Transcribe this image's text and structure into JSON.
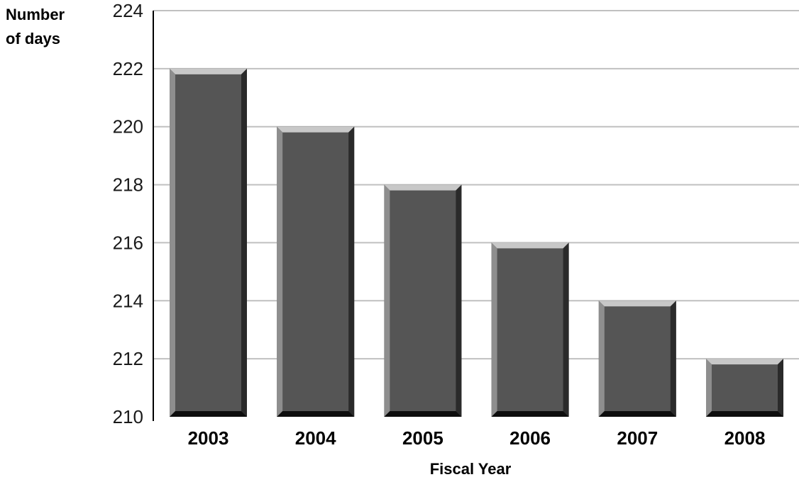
{
  "chart_data": {
    "type": "bar",
    "categories": [
      "2003",
      "2004",
      "2005",
      "2006",
      "2007",
      "2008"
    ],
    "values": [
      222,
      220,
      218,
      216,
      214,
      212
    ],
    "title": "",
    "xlabel": "Fiscal Year",
    "ylabel_lines": [
      "Number",
      "of days"
    ],
    "ylim": [
      210,
      224
    ],
    "yticks": [
      "210",
      "212",
      "214",
      "216",
      "218",
      "220",
      "222",
      "224"
    ],
    "grid": true,
    "colors": {
      "bar_face": "#555555",
      "bar_top": "#c8c8c8",
      "bar_left": "#8e8e8e",
      "bar_right": "#2a2a2a",
      "bar_bottom": "#0d0d0d",
      "grid": "#c0c0c0",
      "axis": "#000000"
    }
  }
}
